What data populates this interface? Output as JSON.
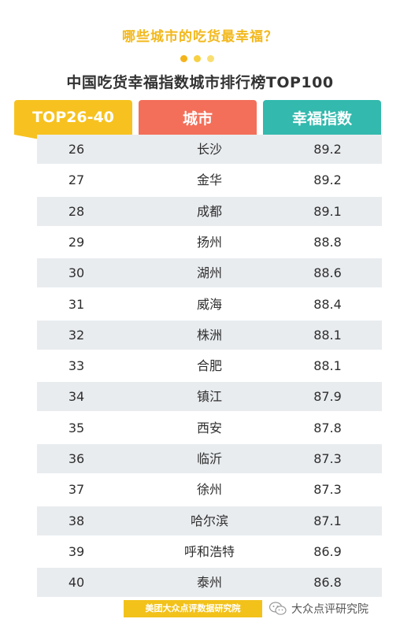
{
  "subtitle": "哪些城市的吃货最幸福？",
  "title": "中国吃货幸福指数城市排行榜TOP100",
  "colors": {
    "yellow": "#f7c21f",
    "coral": "#f36f59",
    "teal": "#33b9ad",
    "row_alt": "#e9ecef",
    "accent_text": "#f2b81c"
  },
  "chart_data": {
    "type": "table",
    "columns": [
      "TOP26-40",
      "城市",
      "幸福指数"
    ],
    "rows": [
      {
        "rank": "26",
        "city": "长沙",
        "score": "89.2"
      },
      {
        "rank": "27",
        "city": "金华",
        "score": "89.2"
      },
      {
        "rank": "28",
        "city": "成都",
        "score": "89.1"
      },
      {
        "rank": "29",
        "city": "扬州",
        "score": "88.8"
      },
      {
        "rank": "30",
        "city": "湖州",
        "score": "88.6"
      },
      {
        "rank": "31",
        "city": "威海",
        "score": "88.4"
      },
      {
        "rank": "32",
        "city": "株洲",
        "score": "88.1"
      },
      {
        "rank": "33",
        "city": "合肥",
        "score": "88.1"
      },
      {
        "rank": "34",
        "city": "镇江",
        "score": "87.9"
      },
      {
        "rank": "35",
        "city": "西安",
        "score": "87.8"
      },
      {
        "rank": "36",
        "city": "临沂",
        "score": "87.3"
      },
      {
        "rank": "37",
        "city": "徐州",
        "score": "87.3"
      },
      {
        "rank": "38",
        "city": "哈尔滨",
        "score": "87.1"
      },
      {
        "rank": "39",
        "city": "呼和浩特",
        "score": "86.9"
      },
      {
        "rank": "40",
        "city": "泰州",
        "score": "86.8"
      }
    ]
  },
  "footer": "美团大众点评数据研究院",
  "watermark": "大众点评研究院",
  "icons": {
    "watermark": "wechat-icon"
  }
}
